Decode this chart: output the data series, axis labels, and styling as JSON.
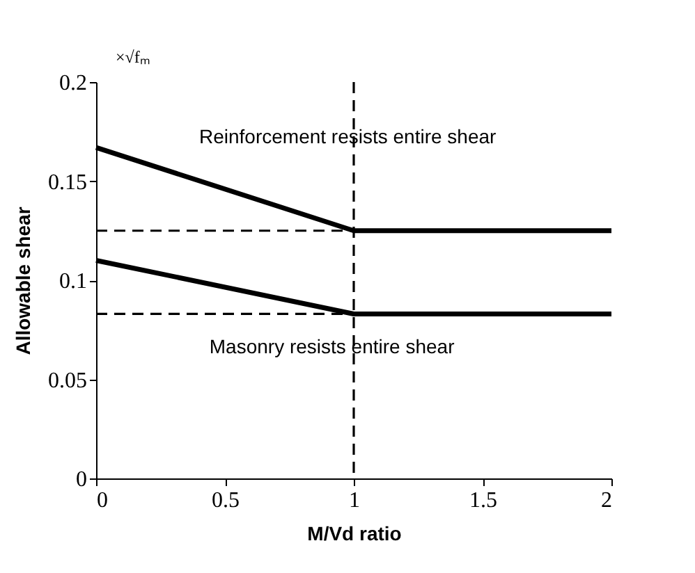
{
  "chart_data": {
    "type": "line",
    "xlabel": "M/Vd ratio",
    "ylabel": "Allowable shear",
    "xlim": [
      0,
      2
    ],
    "xticks": [
      0,
      0.5,
      1,
      1.5,
      2
    ],
    "ylim": [
      0,
      0.2
    ],
    "yticks": [
      0,
      0.05,
      0.1,
      0.15,
      0.2
    ],
    "grid": false,
    "series": [
      {
        "color": "#000000",
        "line_style": "solid",
        "x": [
          0,
          1,
          2
        ],
        "values": [
          0.167,
          0.125,
          0.125
        ]
      },
      {
        "color": "#000000",
        "line_style": "solid",
        "x": [
          0,
          1,
          2
        ],
        "values": [
          0.11,
          0.083,
          0.083
        ]
      },
      {
        "color": "#000000",
        "line_style": "dashed",
        "x": [
          0,
          1
        ],
        "values": [
          0.125,
          0.125
        ]
      },
      {
        "color": "#000000",
        "line_style": "dashed",
        "x": [
          0,
          1
        ],
        "values": [
          0.083,
          0.083
        ]
      }
    ],
    "ref_lines": [
      {
        "axis": "x",
        "value": 1,
        "color": "#000000",
        "line_style": "dashed"
      }
    ],
    "annotations": [
      "×√fₘ",
      "Reinforcement resists entire shear",
      "Masonry resists entire shear"
    ]
  }
}
